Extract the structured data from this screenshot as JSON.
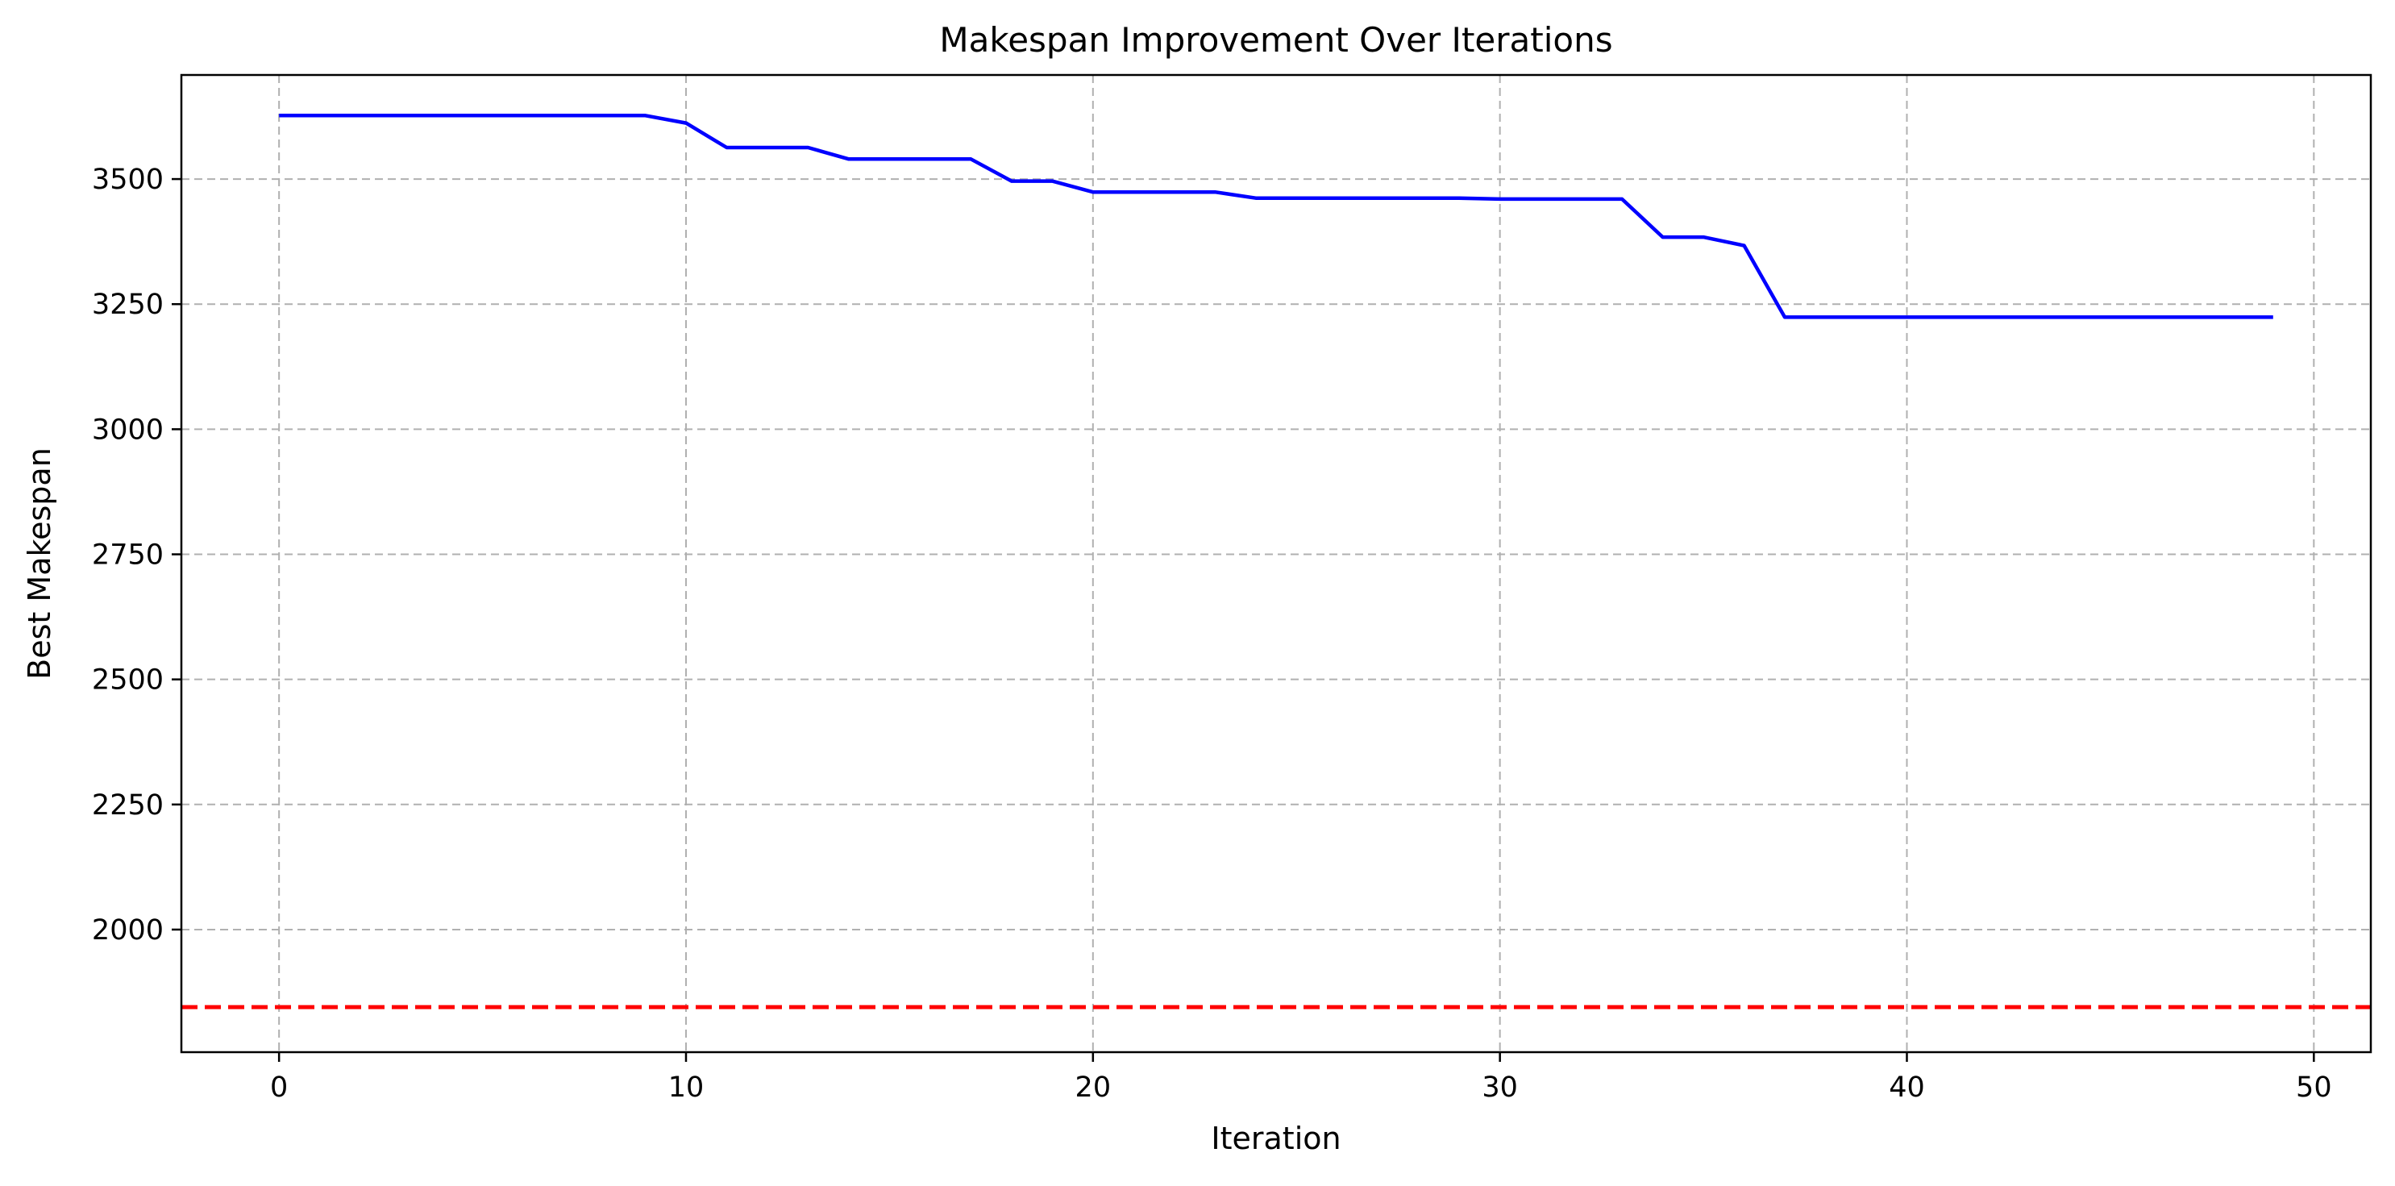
{
  "chart_data": {
    "type": "line",
    "title": "Makespan Improvement Over Iterations",
    "xlabel": "Iteration",
    "ylabel": "Best Makespan",
    "xlim": [
      -2.4,
      51.4
    ],
    "ylim": [
      1755,
      3708
    ],
    "x_ticks": [
      0,
      10,
      20,
      30,
      40,
      50
    ],
    "y_ticks": [
      2000,
      2250,
      2500,
      2750,
      3000,
      3250,
      3500
    ],
    "grid": true,
    "legend": "none",
    "series": [
      {
        "color": "#0000ff",
        "style": "solid",
        "x": [
          0,
          1,
          2,
          3,
          4,
          5,
          6,
          7,
          8,
          9,
          10,
          11,
          12,
          13,
          14,
          15,
          16,
          17,
          18,
          19,
          20,
          21,
          22,
          23,
          24,
          25,
          26,
          27,
          28,
          29,
          30,
          31,
          32,
          33,
          34,
          35,
          36,
          37,
          38,
          39,
          40,
          41,
          42,
          43,
          44,
          45,
          46,
          47,
          48,
          49
        ],
        "values": [
          3627,
          3627,
          3627,
          3627,
          3627,
          3627,
          3627,
          3627,
          3627,
          3627,
          3612,
          3563,
          3563,
          3563,
          3540,
          3540,
          3540,
          3540,
          3496,
          3496,
          3474,
          3474,
          3474,
          3474,
          3462,
          3462,
          3462,
          3462,
          3462,
          3462,
          3460,
          3460,
          3460,
          3460,
          3384,
          3384,
          3367,
          3224,
          3224,
          3224,
          3224,
          3224,
          3224,
          3224,
          3224,
          3224,
          3224,
          3224,
          3224,
          3224
        ]
      }
    ],
    "reference_lines": [
      {
        "orientation": "horizontal",
        "value": 1845,
        "color": "#ff0000",
        "style": "dashed"
      }
    ],
    "colors": {
      "grid": "#b0b0b0",
      "axes": "#000000"
    }
  }
}
